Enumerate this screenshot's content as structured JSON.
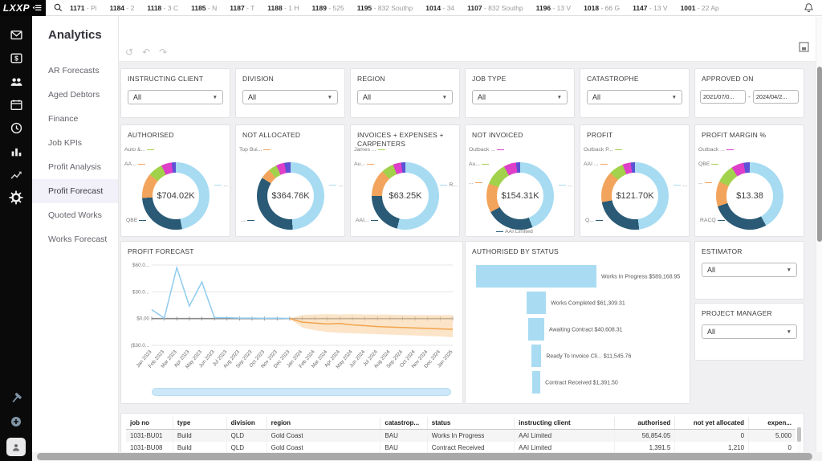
{
  "topbar": {
    "logo_text": "LXXP",
    "logo_icon": "collapse-menu",
    "search_icon": "search",
    "notifications_icon": "notifications",
    "tabs": [
      {
        "id": "1171",
        "label": "Pi"
      },
      {
        "id": "1184",
        "label": "2"
      },
      {
        "id": "1118",
        "label": "3 C"
      },
      {
        "id": "1185",
        "label": "N"
      },
      {
        "id": "1187",
        "label": "T"
      },
      {
        "id": "1188",
        "label": "1 H"
      },
      {
        "id": "1189",
        "label": "525"
      },
      {
        "id": "1195",
        "label": "832 Southp"
      },
      {
        "id": "1014",
        "label": "34"
      },
      {
        "id": "1107",
        "label": "832 Southp"
      },
      {
        "id": "1196",
        "label": "13 V"
      },
      {
        "id": "1018",
        "label": "66 G"
      },
      {
        "id": "1147",
        "label": "13 V"
      },
      {
        "id": "1001",
        "label": "22 Ap"
      }
    ]
  },
  "rail": {
    "icons": [
      "mail",
      "billing",
      "contacts",
      "calendar",
      "time",
      "reports",
      "analytics",
      "settings"
    ],
    "bottom_icons": [
      "tools",
      "add"
    ],
    "profile_icon": "profile"
  },
  "sidebar": {
    "title": "Analytics",
    "items": [
      {
        "label": "AR Forecasts",
        "active": false
      },
      {
        "label": "Aged Debtors",
        "active": false
      },
      {
        "label": "Finance",
        "active": false
      },
      {
        "label": "Job KPIs",
        "active": false
      },
      {
        "label": "Profit Analysis",
        "active": false
      },
      {
        "label": "Profit Forecast",
        "active": true
      },
      {
        "label": "Quoted Works",
        "active": false
      },
      {
        "label": "Works Forecast",
        "active": false
      }
    ]
  },
  "toolbar": {
    "left_icons": [
      "reset",
      "undo",
      "redo"
    ],
    "right_icons": [
      "fit-to-page"
    ]
  },
  "filters": [
    {
      "label": "INSTRUCTING CLIENT",
      "type": "select",
      "value": "All"
    },
    {
      "label": "DIVISION",
      "type": "select",
      "value": "All"
    },
    {
      "label": "REGION",
      "type": "select",
      "value": "All"
    },
    {
      "label": "JOB TYPE",
      "type": "select",
      "value": "All"
    },
    {
      "label": "CATASTROPHE",
      "type": "select",
      "value": "All"
    },
    {
      "label": "APPROVED ON",
      "type": "daterange",
      "from": "2021/07/0...",
      "to": "2024/04/2..."
    }
  ],
  "side_filters": [
    {
      "label": "ESTIMATOR",
      "value": "All"
    },
    {
      "label": "PROJECT MANAGER",
      "value": "All"
    }
  ],
  "palette": {
    "lightblue": "#A6DBF2",
    "dark": "#2A5A75",
    "orange": "#F2A45C",
    "lime": "#A2D24B",
    "magenta": "#DE3FC8",
    "violet": "#5B52D5",
    "bar": "#A9DCF2",
    "hist_line": "#8FCBEE",
    "forecast_line": "#F2A44C",
    "band": "#F7CE9B"
  },
  "chart_data": [
    {
      "type": "donut",
      "title": "AUTHORISED",
      "center_value": "$704.02K",
      "segments": [
        {
          "color": "lightblue",
          "pct": 47
        },
        {
          "color": "dark",
          "pct": 27
        },
        {
          "color": "orange",
          "pct": 12
        },
        {
          "color": "lime",
          "pct": 7
        },
        {
          "color": "magenta",
          "pct": 5
        },
        {
          "color": "violet",
          "pct": 2
        }
      ],
      "labels": [
        {
          "text": "Auto &...",
          "color": "lime",
          "slot": "tl1"
        },
        {
          "text": "AA...",
          "color": "orange",
          "slot": "tl2"
        },
        {
          "text": "QBE",
          "color": "dark",
          "slot": "bl"
        },
        {
          "text": "...",
          "color": "lightblue",
          "slot": "r"
        }
      ]
    },
    {
      "type": "donut",
      "title": "NOT ALLOCATED",
      "center_value": "$364.76K",
      "segments": [
        {
          "color": "lightblue",
          "pct": 49
        },
        {
          "color": "dark",
          "pct": 35
        },
        {
          "color": "orange",
          "pct": 5
        },
        {
          "color": "lime",
          "pct": 4
        },
        {
          "color": "magenta",
          "pct": 4
        },
        {
          "color": "violet",
          "pct": 3
        }
      ],
      "labels": [
        {
          "text": "Top Bui...",
          "color": "orange",
          "slot": "tl1"
        },
        {
          "text": "...",
          "color": "dark",
          "slot": "bl"
        },
        {
          "text": "...",
          "color": "lightblue",
          "slot": "r"
        }
      ]
    },
    {
      "type": "donut",
      "title": "INVOICES + EXPENSES + CARPENTERS",
      "center_value": "$63.25K",
      "segments": [
        {
          "color": "lightblue",
          "pct": 54
        },
        {
          "color": "dark",
          "pct": 21
        },
        {
          "color": "orange",
          "pct": 13
        },
        {
          "color": "lime",
          "pct": 6
        },
        {
          "color": "magenta",
          "pct": 4
        },
        {
          "color": "violet",
          "pct": 2
        }
      ],
      "labels": [
        {
          "text": "James ...",
          "color": "lime",
          "slot": "tl1"
        },
        {
          "text": "Au...",
          "color": "orange",
          "slot": "tl2"
        },
        {
          "text": "AAI...",
          "color": "dark",
          "slot": "bl"
        },
        {
          "text": "R...",
          "color": "lightblue",
          "slot": "r"
        }
      ]
    },
    {
      "type": "donut",
      "title": "NOT INVOICED",
      "center_value": "$154.31K",
      "segments": [
        {
          "color": "lightblue",
          "pct": 44
        },
        {
          "color": "dark",
          "pct": 23
        },
        {
          "color": "orange",
          "pct": 14
        },
        {
          "color": "lime",
          "pct": 11
        },
        {
          "color": "magenta",
          "pct": 6
        },
        {
          "color": "violet",
          "pct": 2
        }
      ],
      "labels": [
        {
          "text": "Outback ...",
          "color": "magenta",
          "slot": "tl1"
        },
        {
          "text": "Au...",
          "color": "lime",
          "slot": "tl2"
        },
        {
          "text": "...",
          "color": "orange",
          "slot": "l3"
        },
        {
          "text": "AAI Limited",
          "color": "dark",
          "slot": "b"
        },
        {
          "text": "...",
          "color": "lightblue",
          "slot": "r"
        }
      ]
    },
    {
      "type": "donut",
      "title": "PROFIT",
      "center_value": "$121.70K",
      "segments": [
        {
          "color": "lightblue",
          "pct": 48
        },
        {
          "color": "dark",
          "pct": 24
        },
        {
          "color": "orange",
          "pct": 15
        },
        {
          "color": "lime",
          "pct": 7
        },
        {
          "color": "magenta",
          "pct": 4
        },
        {
          "color": "violet",
          "pct": 2
        }
      ],
      "labels": [
        {
          "text": "Outback P...",
          "color": "lime",
          "slot": "tl1"
        },
        {
          "text": "AAI ...",
          "color": "orange",
          "slot": "tl2"
        },
        {
          "text": "Q...",
          "color": "dark",
          "slot": "bl"
        },
        {
          "text": "...",
          "color": "lightblue",
          "slot": "r"
        }
      ]
    },
    {
      "type": "donut",
      "title": "PROFIT MARGIN %",
      "center_value": "$13.38",
      "segments": [
        {
          "color": "lightblue",
          "pct": 42
        },
        {
          "color": "dark",
          "pct": 28
        },
        {
          "color": "orange",
          "pct": 12
        },
        {
          "color": "lime",
          "pct": 9
        },
        {
          "color": "magenta",
          "pct": 6
        },
        {
          "color": "violet",
          "pct": 3
        }
      ],
      "labels": [
        {
          "text": "Outback ...",
          "color": "magenta",
          "slot": "tl1"
        },
        {
          "text": "QBE",
          "color": "lime",
          "slot": "tl2"
        },
        {
          "text": "...",
          "color": "orange",
          "slot": "l3"
        },
        {
          "text": "RACQ",
          "color": "dark",
          "slot": "bl"
        }
      ]
    },
    {
      "type": "line",
      "title": "PROFIT FORECAST",
      "x": [
        "Jan 2023",
        "Feb 2023",
        "Mar 2023",
        "Apr 2023",
        "May 2023",
        "Jun 2023",
        "Jul 2023",
        "Aug 2023",
        "Sep 2023",
        "Oct 2023",
        "Nov 2023",
        "Dec 2023",
        "Jan 2024",
        "Feb 2024",
        "Mar 2024",
        "Apr 2024",
        "May 2024",
        "Jun 2024",
        "Jul 2024",
        "Aug 2024",
        "Sep 2024",
        "Oct 2024",
        "Nov 2024",
        "Dec 2024",
        "Jan 2025"
      ],
      "ylim": [
        -30,
        60
      ],
      "yticks": [
        {
          "v": 60,
          "label": "$60.0..."
        },
        {
          "v": 30,
          "label": "$30.0..."
        },
        {
          "v": 0,
          "label": "$0.00"
        },
        {
          "v": -30,
          "label": "($30.0..."
        }
      ],
      "history": [
        10,
        0.5,
        57,
        14,
        41,
        1,
        1,
        0.5,
        0.5,
        0.3,
        0.5,
        0
      ],
      "forecast_start_index": 11,
      "forecast": [
        0,
        -4,
        -5,
        -6,
        -5.5,
        -7,
        -8,
        -9,
        -9.5,
        -10,
        -10.5,
        -11,
        -11.5,
        -12
      ],
      "band_upper": [
        0,
        4,
        4.5,
        5,
        4.5,
        5,
        4.5,
        4.5,
        4.5,
        4,
        4,
        4,
        4,
        4
      ],
      "band_lower": [
        0,
        -10,
        -13,
        -15,
        -16,
        -16.5,
        -17,
        -17.5,
        -18,
        -18.5,
        -19,
        -19.5,
        -20,
        -21
      ]
    },
    {
      "type": "funnel",
      "title": "AUTHORISED BY STATUS",
      "items": [
        {
          "label": "Works In Progress",
          "value": 589168.95,
          "value_display": "$589,168.95"
        },
        {
          "label": "Works Completed",
          "value": 61309.31,
          "value_display": "$61,309.31"
        },
        {
          "label": "Awaiting Contract",
          "value": 40608.31,
          "value_display": "$40,608.31"
        },
        {
          "label": "Ready To Invoice Cli...",
          "value": 11545.76,
          "value_display": "$11,545.76"
        },
        {
          "label": "Contract Received",
          "value": 1391.5,
          "value_display": "$1,391.50"
        }
      ]
    }
  ],
  "table": {
    "columns": [
      {
        "label": "job no",
        "align": "left"
      },
      {
        "label": "type",
        "align": "left"
      },
      {
        "label": "division",
        "align": "left"
      },
      {
        "label": "region",
        "align": "left"
      },
      {
        "label": "catastrop...",
        "align": "left"
      },
      {
        "label": "status",
        "align": "left"
      },
      {
        "label": "instructing client",
        "align": "left"
      },
      {
        "label": "authorised",
        "align": "right"
      },
      {
        "label": "not yet allocated",
        "align": "right"
      },
      {
        "label": "expen...",
        "align": "right"
      }
    ],
    "rows": [
      [
        "1031-BU01",
        "Build",
        "QLD",
        "Gold Coast",
        "BAU",
        "Works In Progress",
        "AAI Limited",
        "56,854.05",
        "0",
        "5,000"
      ],
      [
        "1031-BU08",
        "Build",
        "QLD",
        "Gold Coast",
        "BAU",
        "Contract Received",
        "AAI Limited",
        "1,391.5",
        "1,210",
        "0"
      ]
    ]
  }
}
